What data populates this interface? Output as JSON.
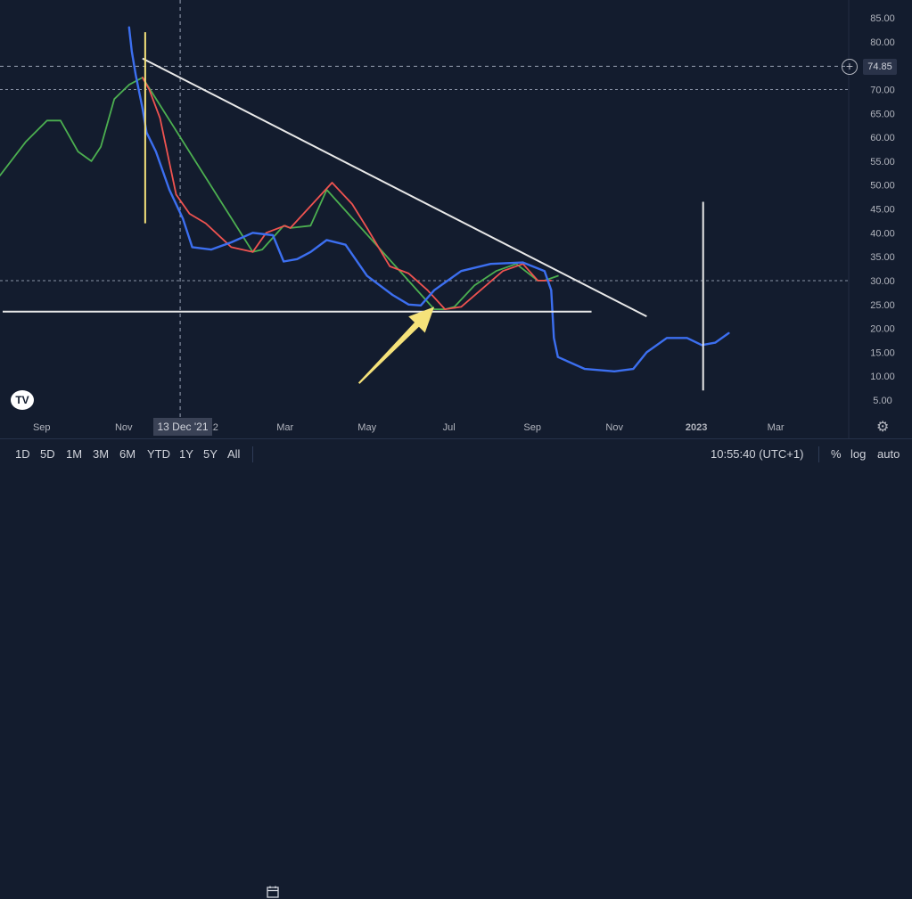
{
  "chart_data": {
    "type": "line",
    "y_ticks": [
      "85.00",
      "80.00",
      "75.00",
      "70.00",
      "65.00",
      "60.00",
      "55.00",
      "50.00",
      "45.00",
      "40.00",
      "35.00",
      "30.00",
      "25.00",
      "20.00",
      "15.00",
      "10.00",
      "5.00"
    ],
    "y_range": [
      5,
      85
    ],
    "x_ticks": [
      "Sep",
      "Nov",
      "22",
      "Mar",
      "May",
      "Jul",
      "Sep",
      "Nov",
      "2023",
      "Mar"
    ],
    "x_range": [
      "2021-08-01",
      "2023-04-15"
    ],
    "grid": false,
    "crosshair": {
      "x_label": "13 Dec '21",
      "y": 74.85
    },
    "horizontal_dashed_levels": [
      70,
      30
    ],
    "price_label": "74.85",
    "colors": {
      "background": "#131c2e",
      "blue": "#3c6ff0",
      "green": "#4caf50",
      "red": "#ef5350",
      "white": "#e8e8e8",
      "arrow": "#f5e27a"
    },
    "series": [
      {
        "color": "#4caf50",
        "points": [
          [
            "2021-08-01",
            52
          ],
          [
            "2021-08-20",
            59
          ],
          [
            "2021-09-05",
            63.5
          ],
          [
            "2021-09-15",
            63.5
          ],
          [
            "2021-09-28",
            57
          ],
          [
            "2021-10-08",
            55
          ],
          [
            "2021-10-15",
            58
          ],
          [
            "2021-10-25",
            68
          ],
          [
            "2021-11-05",
            71
          ],
          [
            "2021-11-15",
            72.5
          ],
          [
            "2022-02-05",
            36
          ],
          [
            "2022-02-12",
            36.5
          ],
          [
            "2022-02-28",
            41.5
          ],
          [
            "2022-03-05",
            41
          ],
          [
            "2022-03-20",
            41.5
          ],
          [
            "2022-04-01",
            49
          ],
          [
            "2022-06-20",
            24
          ],
          [
            "2022-06-28",
            24
          ],
          [
            "2022-07-05",
            24.5
          ],
          [
            "2022-07-20",
            29
          ],
          [
            "2022-08-05",
            32
          ],
          [
            "2022-08-20",
            33.5
          ],
          [
            "2022-09-05",
            30
          ],
          [
            "2022-09-10",
            30
          ],
          [
            "2022-09-20",
            31
          ]
        ]
      },
      {
        "color": "#ef5350",
        "points": [
          [
            "2021-11-15",
            72.5
          ],
          [
            "2021-11-20",
            70
          ],
          [
            "2021-11-28",
            64
          ],
          [
            "2021-12-10",
            48
          ],
          [
            "2021-12-20",
            44
          ],
          [
            "2022-01-01",
            42
          ],
          [
            "2022-01-20",
            37
          ],
          [
            "2022-02-05",
            36
          ],
          [
            "2022-02-15",
            40
          ],
          [
            "2022-03-01",
            41.5
          ],
          [
            "2022-03-05",
            41
          ],
          [
            "2022-04-05",
            50.5
          ],
          [
            "2022-04-20",
            46
          ],
          [
            "2022-05-01",
            41
          ],
          [
            "2022-05-18",
            33
          ],
          [
            "2022-06-01",
            31.5
          ],
          [
            "2022-06-15",
            28
          ],
          [
            "2022-06-28",
            24
          ],
          [
            "2022-07-10",
            24.5
          ],
          [
            "2022-08-10",
            32
          ],
          [
            "2022-08-25",
            33.5
          ],
          [
            "2022-09-05",
            30
          ],
          [
            "2022-09-15",
            30
          ]
        ]
      },
      {
        "color": "#3c6ff0",
        "points": [
          [
            "2021-11-05",
            83
          ],
          [
            "2021-11-07",
            78
          ],
          [
            "2021-11-10",
            73
          ],
          [
            "2021-11-15",
            66
          ],
          [
            "2021-11-18",
            61
          ],
          [
            "2021-11-25",
            57
          ],
          [
            "2021-12-05",
            49
          ],
          [
            "2021-12-15",
            43
          ],
          [
            "2021-12-22",
            37
          ],
          [
            "2022-01-05",
            36.5
          ],
          [
            "2022-01-20",
            38
          ],
          [
            "2022-02-05",
            40
          ],
          [
            "2022-02-20",
            39.5
          ],
          [
            "2022-02-28",
            34
          ],
          [
            "2022-03-10",
            34.5
          ],
          [
            "2022-03-20",
            36
          ],
          [
            "2022-04-01",
            38.5
          ],
          [
            "2022-04-15",
            37.5
          ],
          [
            "2022-05-01",
            31
          ],
          [
            "2022-05-20",
            27
          ],
          [
            "2022-06-01",
            25
          ],
          [
            "2022-06-10",
            24.8
          ],
          [
            "2022-06-20",
            28
          ],
          [
            "2022-07-10",
            32
          ],
          [
            "2022-08-01",
            33.5
          ],
          [
            "2022-08-25",
            33.8
          ],
          [
            "2022-09-10",
            32
          ],
          [
            "2022-09-15",
            28
          ],
          [
            "2022-09-17",
            18
          ],
          [
            "2022-09-20",
            14
          ],
          [
            "2022-10-10",
            11.5
          ],
          [
            "2022-11-01",
            11
          ],
          [
            "2022-11-15",
            11.5
          ],
          [
            "2022-11-25",
            15
          ],
          [
            "2022-12-10",
            18
          ],
          [
            "2022-12-25",
            18
          ],
          [
            "2023-01-05",
            16.5
          ],
          [
            "2023-01-15",
            17
          ],
          [
            "2023-01-25",
            19
          ]
        ]
      }
    ],
    "drawings": [
      {
        "type": "trendline",
        "color": "#e8e8e8",
        "from": [
          "2021-11-15",
          76.5
        ],
        "to": [
          "2022-11-25",
          22.5
        ]
      },
      {
        "type": "hline",
        "color": "#e8e8e8",
        "from": [
          "2021-08-01",
          23.5
        ],
        "to": [
          "2022-10-15",
          23.5
        ]
      },
      {
        "type": "vline",
        "color": "#f5e27a",
        "x": "2021-11-17",
        "y": [
          42,
          82
        ]
      },
      {
        "type": "vline",
        "color": "#e8e8e8",
        "x": "2023-01-06",
        "y": [
          7,
          46.5
        ]
      },
      {
        "type": "arrow",
        "color": "#f5e27a",
        "from": [
          "2022-04-25",
          8.5
        ],
        "to": [
          "2022-06-20",
          24.5
        ]
      }
    ]
  },
  "bottom_bar": {
    "ranges": [
      "1D",
      "5D",
      "1M",
      "3M",
      "6M",
      "YTD",
      "1Y",
      "5Y",
      "All"
    ],
    "time": "10:55:40 (UTC+1)",
    "percent": "%",
    "log": "log",
    "auto": "auto"
  },
  "logo_text": "TV"
}
